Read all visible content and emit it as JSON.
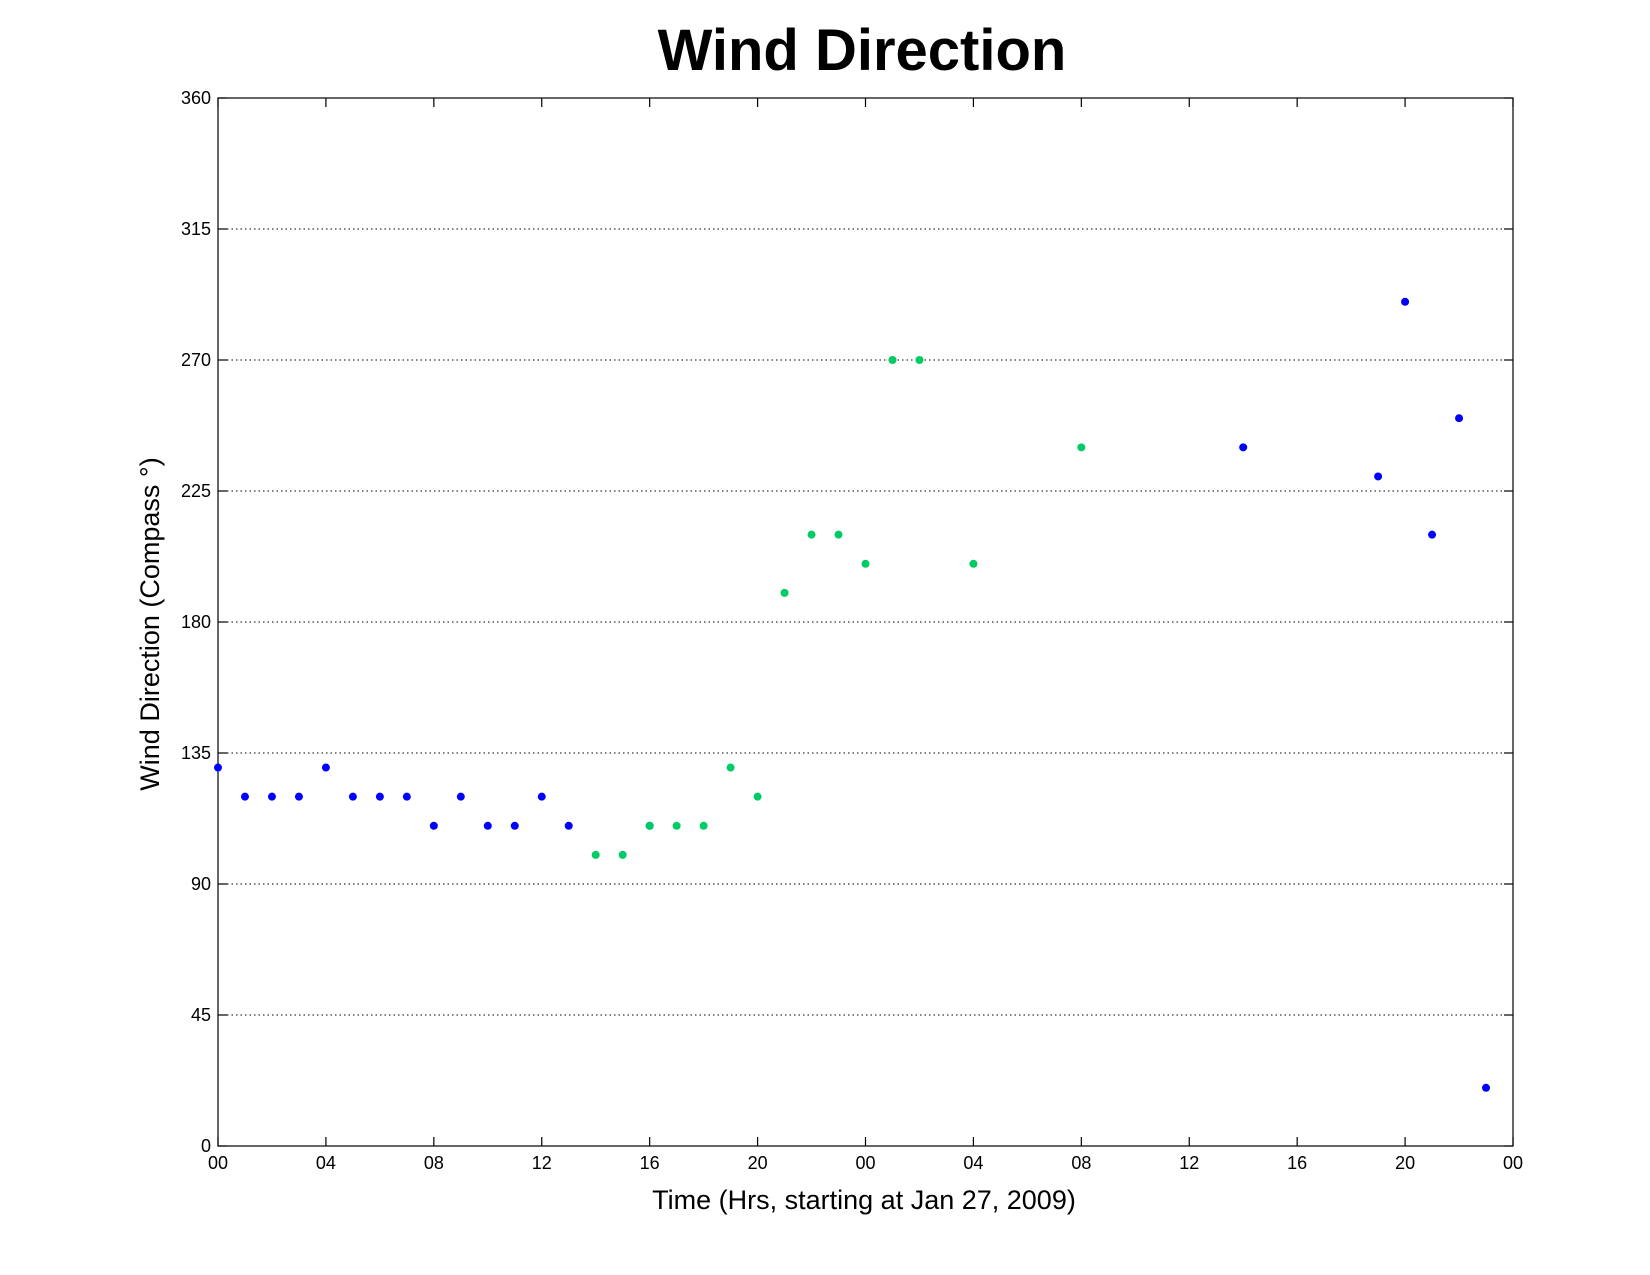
{
  "chart_data": {
    "type": "scatter",
    "title": "Wind Direction",
    "xlabel": "Time (Hrs, starting at Jan 27, 2009)",
    "ylabel": "Wind Direction (Compass  °)",
    "ylim": [
      0,
      360
    ],
    "xlim": [
      0,
      48
    ],
    "grid": "horizontal",
    "x_ticks": [
      {
        "x": 0,
        "label": "00"
      },
      {
        "x": 4,
        "label": "04"
      },
      {
        "x": 8,
        "label": "08"
      },
      {
        "x": 12,
        "label": "12"
      },
      {
        "x": 16,
        "label": "16"
      },
      {
        "x": 20,
        "label": "20"
      },
      {
        "x": 24,
        "label": "00"
      },
      {
        "x": 28,
        "label": "04"
      },
      {
        "x": 32,
        "label": "08"
      },
      {
        "x": 36,
        "label": "12"
      },
      {
        "x": 40,
        "label": "16"
      },
      {
        "x": 44,
        "label": "20"
      },
      {
        "x": 48,
        "label": "00"
      }
    ],
    "y_ticks": [
      0,
      45,
      90,
      135,
      180,
      225,
      270,
      315,
      360
    ],
    "series": [
      {
        "color": "#0000ff",
        "points": [
          [
            0,
            130
          ],
          [
            1,
            120
          ],
          [
            2,
            120
          ],
          [
            3,
            120
          ],
          [
            4,
            130
          ],
          [
            5,
            120
          ],
          [
            6,
            120
          ],
          [
            7,
            120
          ],
          [
            8,
            110
          ],
          [
            9,
            120
          ],
          [
            10,
            110
          ],
          [
            11,
            110
          ],
          [
            12,
            120
          ],
          [
            13,
            110
          ],
          [
            16,
            110
          ],
          [
            38,
            240
          ],
          [
            43,
            230
          ],
          [
            44,
            290
          ],
          [
            45,
            210
          ],
          [
            46,
            250
          ],
          [
            47,
            20
          ]
        ]
      },
      {
        "color": "#00cc66",
        "points": [
          [
            14,
            100
          ],
          [
            15,
            100
          ],
          [
            16,
            110
          ],
          [
            17,
            110
          ],
          [
            18,
            110
          ],
          [
            19,
            130
          ],
          [
            20,
            120
          ],
          [
            21,
            190
          ],
          [
            22,
            210
          ],
          [
            23,
            210
          ],
          [
            24,
            200
          ],
          [
            25,
            270
          ],
          [
            26,
            270
          ],
          [
            28,
            200
          ],
          [
            32,
            240
          ]
        ]
      }
    ]
  }
}
